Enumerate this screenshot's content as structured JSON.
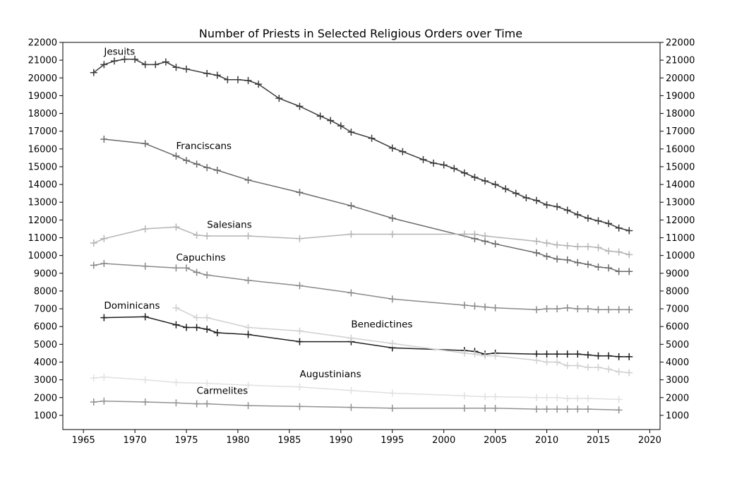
{
  "chart_data": {
    "type": "line",
    "title": "Number of Priests in Selected Religious Orders over Time",
    "xlabel": "",
    "ylabel": "",
    "xlim": [
      1963,
      2021
    ],
    "ylim": [
      200,
      22000
    ],
    "xticks": [
      1965,
      1970,
      1975,
      1980,
      1985,
      1990,
      1995,
      2000,
      2005,
      2010,
      2015,
      2020
    ],
    "yticks": [
      1000,
      2000,
      3000,
      4000,
      5000,
      6000,
      7000,
      8000,
      9000,
      10000,
      11000,
      12000,
      13000,
      14000,
      15000,
      16000,
      17000,
      18000,
      19000,
      20000,
      21000,
      22000
    ],
    "grid": false,
    "legend": "none",
    "y_axis_both_sides": true,
    "marker": "+",
    "series": [
      {
        "name": "Jesuits",
        "color": "#3a3a3a",
        "label": {
          "year": 1967,
          "value": 21300
        },
        "points": [
          [
            1966,
            20300
          ],
          [
            1967,
            20750
          ],
          [
            1968,
            20950
          ],
          [
            1969,
            21050
          ],
          [
            1970,
            21050
          ],
          [
            1971,
            20750
          ],
          [
            1972,
            20750
          ],
          [
            1973,
            20900
          ],
          [
            1974,
            20600
          ],
          [
            1975,
            20500
          ],
          [
            1977,
            20250
          ],
          [
            1978,
            20150
          ],
          [
            1979,
            19900
          ],
          [
            1980,
            19900
          ],
          [
            1981,
            19850
          ],
          [
            1982,
            19650
          ],
          [
            1984,
            18850
          ],
          [
            1986,
            18400
          ],
          [
            1988,
            17850
          ],
          [
            1989,
            17600
          ],
          [
            1990,
            17300
          ],
          [
            1991,
            16950
          ],
          [
            1993,
            16600
          ],
          [
            1995,
            16050
          ],
          [
            1996,
            15850
          ],
          [
            1998,
            15400
          ],
          [
            1999,
            15200
          ],
          [
            2000,
            15100
          ],
          [
            2001,
            14900
          ],
          [
            2002,
            14650
          ],
          [
            2003,
            14400
          ],
          [
            2004,
            14200
          ],
          [
            2005,
            14000
          ],
          [
            2006,
            13750
          ],
          [
            2007,
            13500
          ],
          [
            2008,
            13250
          ],
          [
            2009,
            13100
          ],
          [
            2010,
            12850
          ],
          [
            2011,
            12750
          ],
          [
            2012,
            12550
          ],
          [
            2013,
            12300
          ],
          [
            2014,
            12100
          ],
          [
            2015,
            11950
          ],
          [
            2016,
            11800
          ],
          [
            2017,
            11550
          ],
          [
            2018,
            11400
          ]
        ]
      },
      {
        "name": "Franciscans",
        "color": "#6a6a6a",
        "label": {
          "year": 1974,
          "value": 16000
        },
        "points": [
          [
            1967,
            16550
          ],
          [
            1971,
            16300
          ],
          [
            1974,
            15600
          ],
          [
            1975,
            15350
          ],
          [
            1976,
            15150
          ],
          [
            1977,
            14950
          ],
          [
            1978,
            14800
          ],
          [
            1981,
            14250
          ],
          [
            1986,
            13550
          ],
          [
            1991,
            12800
          ],
          [
            1995,
            12100
          ],
          [
            2003,
            10950
          ],
          [
            2004,
            10800
          ],
          [
            2005,
            10650
          ],
          [
            2009,
            10150
          ],
          [
            2010,
            9950
          ],
          [
            2011,
            9800
          ],
          [
            2012,
            9750
          ],
          [
            2013,
            9600
          ],
          [
            2014,
            9500
          ],
          [
            2015,
            9350
          ],
          [
            2016,
            9300
          ],
          [
            2017,
            9100
          ],
          [
            2018,
            9100
          ]
        ]
      },
      {
        "name": "Salesians",
        "color": "#b4b4b4",
        "label": {
          "year": 1977,
          "value": 11550
        },
        "points": [
          [
            1966,
            10700
          ],
          [
            1967,
            10950
          ],
          [
            1971,
            11500
          ],
          [
            1974,
            11600
          ],
          [
            1976,
            11150
          ],
          [
            1977,
            11100
          ],
          [
            1981,
            11100
          ],
          [
            1986,
            10950
          ],
          [
            1991,
            11200
          ],
          [
            1995,
            11200
          ],
          [
            2002,
            11200
          ],
          [
            2003,
            11200
          ],
          [
            2004,
            11100
          ],
          [
            2009,
            10800
          ],
          [
            2010,
            10700
          ],
          [
            2011,
            10600
          ],
          [
            2012,
            10550
          ],
          [
            2013,
            10500
          ],
          [
            2014,
            10500
          ],
          [
            2015,
            10450
          ],
          [
            2016,
            10250
          ],
          [
            2017,
            10200
          ],
          [
            2018,
            10050
          ]
        ]
      },
      {
        "name": "Capuchins",
        "color": "#8a8a8a",
        "label": {
          "year": 1974,
          "value": 9700
        },
        "points": [
          [
            1966,
            9450
          ],
          [
            1967,
            9550
          ],
          [
            1971,
            9400
          ],
          [
            1974,
            9300
          ],
          [
            1975,
            9300
          ],
          [
            1976,
            9050
          ],
          [
            1977,
            8900
          ],
          [
            1981,
            8600
          ],
          [
            1986,
            8300
          ],
          [
            1991,
            7900
          ],
          [
            1995,
            7550
          ],
          [
            2002,
            7200
          ],
          [
            2003,
            7150
          ],
          [
            2004,
            7100
          ],
          [
            2005,
            7050
          ],
          [
            2009,
            6950
          ],
          [
            2010,
            7000
          ],
          [
            2011,
            7000
          ],
          [
            2012,
            7050
          ],
          [
            2013,
            7000
          ],
          [
            2014,
            7000
          ],
          [
            2015,
            6950
          ],
          [
            2016,
            6950
          ],
          [
            2017,
            6950
          ],
          [
            2018,
            6950
          ]
        ]
      },
      {
        "name": "Dominicans",
        "color": "#1e1e1e",
        "label": {
          "year": 1967,
          "value": 7000
        },
        "points": [
          [
            1967,
            6500
          ],
          [
            1971,
            6550
          ],
          [
            1974,
            6100
          ],
          [
            1975,
            5950
          ],
          [
            1976,
            5950
          ],
          [
            1977,
            5850
          ],
          [
            1978,
            5650
          ],
          [
            1981,
            5550
          ],
          [
            1986,
            5150
          ],
          [
            1991,
            5150
          ],
          [
            1995,
            4800
          ],
          [
            2002,
            4650
          ],
          [
            2003,
            4600
          ],
          [
            2004,
            4450
          ],
          [
            2005,
            4500
          ],
          [
            2009,
            4450
          ],
          [
            2010,
            4450
          ],
          [
            2011,
            4450
          ],
          [
            2012,
            4450
          ],
          [
            2013,
            4450
          ],
          [
            2014,
            4400
          ],
          [
            2015,
            4350
          ],
          [
            2016,
            4350
          ],
          [
            2017,
            4300
          ],
          [
            2018,
            4300
          ]
        ]
      },
      {
        "name": "Benedictines",
        "color": "#d0d0d0",
        "label": {
          "year": 1991,
          "value": 5950
        },
        "points": [
          [
            1974,
            7050
          ],
          [
            1976,
            6500
          ],
          [
            1977,
            6500
          ],
          [
            1981,
            5950
          ],
          [
            1986,
            5750
          ],
          [
            1991,
            5350
          ],
          [
            1995,
            5050
          ],
          [
            2002,
            4500
          ],
          [
            2003,
            4450
          ],
          [
            2004,
            4350
          ],
          [
            2005,
            4350
          ],
          [
            2009,
            4100
          ],
          [
            2010,
            4000
          ],
          [
            2011,
            4000
          ],
          [
            2012,
            3800
          ],
          [
            2013,
            3800
          ],
          [
            2014,
            3700
          ],
          [
            2015,
            3700
          ],
          [
            2016,
            3600
          ],
          [
            2017,
            3450
          ],
          [
            2018,
            3400
          ]
        ]
      },
      {
        "name": "Augustinians",
        "color": "#e0e0e0",
        "label": {
          "year": 1986,
          "value": 3150
        },
        "points": [
          [
            1966,
            3100
          ],
          [
            1967,
            3150
          ],
          [
            1971,
            3000
          ],
          [
            1974,
            2850
          ],
          [
            1977,
            2800
          ],
          [
            1981,
            2700
          ],
          [
            1986,
            2600
          ],
          [
            1991,
            2400
          ],
          [
            1995,
            2250
          ],
          [
            2002,
            2100
          ],
          [
            2004,
            2050
          ],
          [
            2005,
            2050
          ],
          [
            2009,
            2000
          ],
          [
            2010,
            2000
          ],
          [
            2011,
            2000
          ],
          [
            2012,
            1950
          ],
          [
            2013,
            1950
          ],
          [
            2014,
            1950
          ],
          [
            2017,
            1900
          ]
        ]
      },
      {
        "name": "Carmelites",
        "color": "#929292",
        "label": {
          "year": 1976,
          "value": 2200
        },
        "points": [
          [
            1966,
            1750
          ],
          [
            1967,
            1800
          ],
          [
            1971,
            1750
          ],
          [
            1974,
            1700
          ],
          [
            1976,
            1650
          ],
          [
            1977,
            1650
          ],
          [
            1981,
            1550
          ],
          [
            1986,
            1500
          ],
          [
            1991,
            1450
          ],
          [
            1995,
            1400
          ],
          [
            2002,
            1400
          ],
          [
            2004,
            1400
          ],
          [
            2005,
            1400
          ],
          [
            2009,
            1350
          ],
          [
            2010,
            1350
          ],
          [
            2011,
            1350
          ],
          [
            2012,
            1350
          ],
          [
            2013,
            1350
          ],
          [
            2014,
            1350
          ],
          [
            2017,
            1300
          ]
        ]
      }
    ]
  }
}
